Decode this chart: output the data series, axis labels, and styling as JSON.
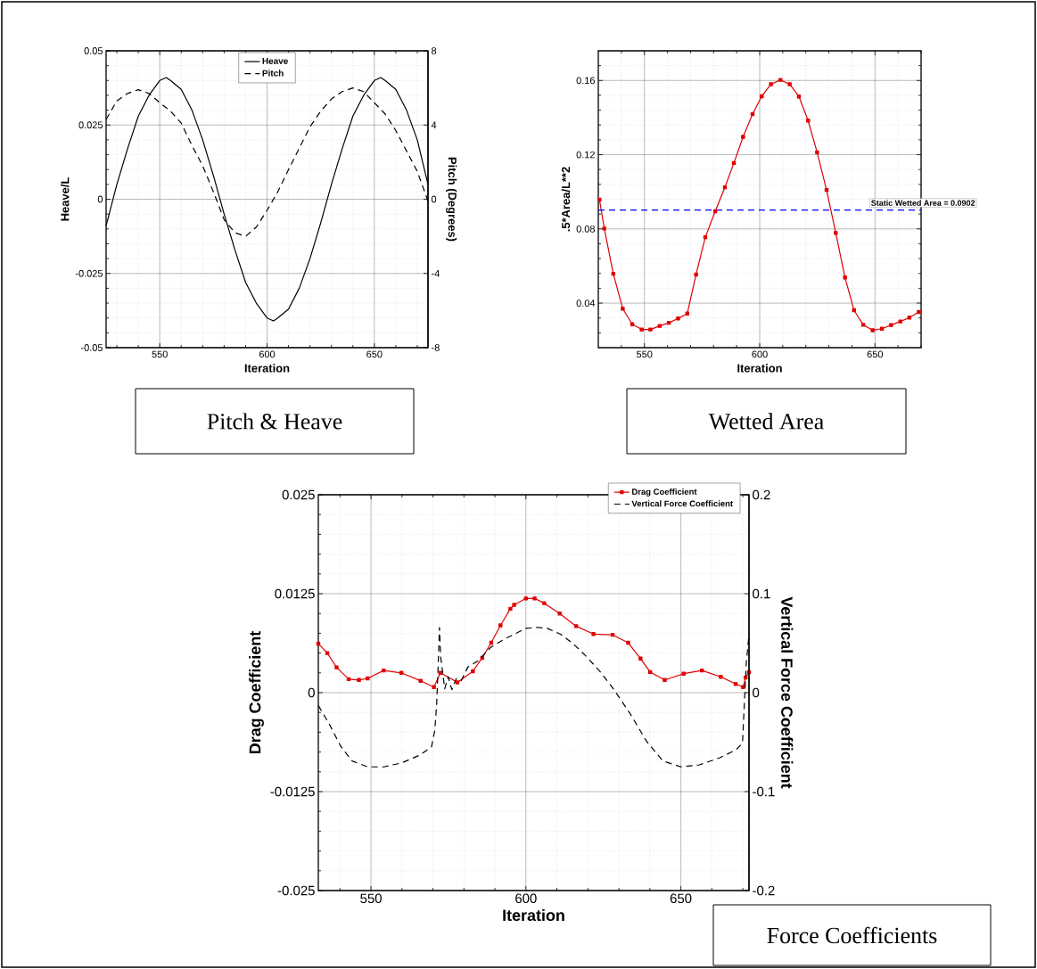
{
  "chart_data": [
    {
      "type": "line",
      "xlabel": "Iteration",
      "ylabel": "Heave/L",
      "y2label": "Pitch (Degrees)",
      "annotations": [
        "Pitch & Heave"
      ],
      "xlim": [
        525,
        675
      ],
      "ylim": [
        -0.05,
        0.05
      ],
      "y2lim": [
        -8,
        8
      ],
      "xticks": [
        {
          "value": 530,
          "label": null
        },
        {
          "value": 540,
          "label": null
        },
        550,
        {
          "value": 560,
          "label": null
        },
        {
          "value": 570,
          "label": null
        },
        {
          "value": 580,
          "label": null
        },
        {
          "value": 590,
          "label": null
        },
        600,
        {
          "value": 610,
          "label": null
        },
        {
          "value": 620,
          "label": null
        },
        {
          "value": 630,
          "label": null
        },
        {
          "value": 640,
          "label": null
        },
        650,
        {
          "value": 660,
          "label": null
        },
        {
          "value": 670,
          "label": null
        }
      ],
      "yticks": [
        -0.05,
        {
          "value": -0.045,
          "label": null
        },
        {
          "value": -0.04,
          "label": null
        },
        {
          "value": -0.035,
          "label": null
        },
        {
          "value": -0.03,
          "label": null
        },
        -0.025,
        {
          "value": -0.02,
          "label": null
        },
        {
          "value": -0.015,
          "label": null
        },
        {
          "value": -0.01,
          "label": null
        },
        {
          "value": -0.005,
          "label": null
        },
        0,
        {
          "value": 0.005,
          "label": null
        },
        {
          "value": 0.01,
          "label": null
        },
        {
          "value": 0.015,
          "label": null
        },
        {
          "value": 0.02,
          "label": null
        },
        0.025,
        {
          "value": 0.03,
          "label": null
        },
        {
          "value": 0.035,
          "label": null
        },
        {
          "value": 0.04,
          "label": null
        },
        {
          "value": 0.045,
          "label": null
        },
        0.05
      ],
      "y2ticks": [
        -8,
        -4,
        0,
        4,
        8
      ],
      "grid": true,
      "legend": "top",
      "series": [
        {
          "name": "Heave",
          "color": "#000000",
          "line_style": "solid",
          "x": [
            525,
            530,
            535,
            540,
            545,
            550,
            553,
            555,
            560,
            565,
            570,
            575,
            580,
            585,
            590,
            595,
            600,
            603,
            605,
            610,
            615,
            620,
            625,
            630,
            635,
            640,
            645,
            650,
            653,
            655,
            660,
            665,
            670,
            675
          ],
          "values": [
            -0.009,
            0.005,
            0.017,
            0.028,
            0.035,
            0.04,
            0.041,
            0.04,
            0.037,
            0.03,
            0.02,
            0.008,
            -0.005,
            -0.017,
            -0.028,
            -0.035,
            -0.04,
            -0.041,
            -0.04,
            -0.037,
            -0.03,
            -0.02,
            -0.008,
            0.005,
            0.017,
            0.028,
            0.035,
            0.04,
            0.041,
            0.04,
            0.037,
            0.03,
            0.02,
            0.005
          ]
        },
        {
          "name": "Pitch",
          "color": "#000000",
          "line_style": "dashed",
          "axis": "y2",
          "x": [
            525,
            530,
            535,
            540,
            545,
            550,
            555,
            560,
            565,
            570,
            575,
            580,
            585,
            590,
            595,
            600,
            605,
            610,
            615,
            620,
            625,
            630,
            635,
            640,
            645,
            650,
            655,
            660,
            665,
            670,
            675
          ],
          "values": [
            4.3,
            5.3,
            5.7,
            5.9,
            5.7,
            5.2,
            4.75,
            4.1,
            2.9,
            1.8,
            0.4,
            -1.1,
            -1.8,
            -2.0,
            -1.5,
            -0.6,
            0.4,
            1.6,
            2.75,
            3.9,
            4.75,
            5.4,
            5.8,
            6.0,
            5.8,
            5.2,
            4.6,
            3.7,
            2.6,
            1.5,
            -0.1
          ]
        }
      ]
    },
    {
      "type": "line",
      "xlabel": "Iteration",
      "ylabel": ".5*Area/L**2",
      "annotations": [
        "Wetted Area"
      ],
      "xlim": [
        530,
        670
      ],
      "ylim": [
        0.016,
        0.176
      ],
      "xticks": [
        {
          "value": 540,
          "label": null
        },
        550,
        {
          "value": 560,
          "label": null
        },
        {
          "value": 570,
          "label": null
        },
        {
          "value": 580,
          "label": null
        },
        {
          "value": 590,
          "label": null
        },
        600,
        {
          "value": 610,
          "label": null
        },
        {
          "value": 620,
          "label": null
        },
        {
          "value": 630,
          "label": null
        },
        {
          "value": 640,
          "label": null
        },
        650,
        {
          "value": 660,
          "label": null
        },
        {
          "value": 670,
          "label": null
        }
      ],
      "yticks": [
        {
          "value": 0.024,
          "label": null
        },
        {
          "value": 0.032,
          "label": null
        },
        0.04,
        {
          "value": 0.048,
          "label": null
        },
        {
          "value": 0.056,
          "label": null
        },
        {
          "value": 0.064,
          "label": null
        },
        {
          "value": 0.072,
          "label": null
        },
        0.08,
        {
          "value": 0.088,
          "label": null
        },
        {
          "value": 0.096,
          "label": null
        },
        {
          "value": 0.104,
          "label": null
        },
        {
          "value": 0.112,
          "label": null
        },
        0.12,
        {
          "value": 0.128,
          "label": null
        },
        {
          "value": 0.136,
          "label": null
        },
        {
          "value": 0.144,
          "label": null
        },
        {
          "value": 0.152,
          "label": null
        },
        0.16,
        {
          "value": 0.168,
          "label": null
        }
      ],
      "grid": true,
      "ref_lines": [
        {
          "axis": "y",
          "value": 0.0902,
          "label": "Static Wetted Area = 0.0902",
          "color": "#0000ff",
          "line_style": "dashed"
        }
      ],
      "series": [
        {
          "color": "#e00000",
          "marker": "square",
          "line_style": "solid",
          "x": [
            530.5,
            532.6,
            536.5,
            540.6,
            544.7,
            548.8,
            552.6,
            556.6,
            560.6,
            564.6,
            568.6,
            572.4,
            576.4,
            580.7,
            584.9,
            588.8,
            592.8,
            596.9,
            600.9,
            604.9,
            609.0,
            613.0,
            617.0,
            621.0,
            624.9,
            629.0,
            633.0,
            637.0,
            640.9,
            644.9,
            649.0,
            653.0,
            657.0,
            661.0,
            664.9,
            669.0
          ],
          "values": [
            0.0958,
            0.0802,
            0.0558,
            0.037,
            0.0286,
            0.0258,
            0.0258,
            0.0277,
            0.0294,
            0.0317,
            0.0344,
            0.0554,
            0.0755,
            0.0895,
            0.1024,
            0.1155,
            0.1296,
            0.1419,
            0.1515,
            0.158,
            0.1603,
            0.158,
            0.1514,
            0.1384,
            0.1213,
            0.101,
            0.0778,
            0.0538,
            0.0362,
            0.0283,
            0.0254,
            0.0262,
            0.0282,
            0.0301,
            0.0322,
            0.0352
          ]
        }
      ]
    },
    {
      "type": "line",
      "xlabel": "Iteration",
      "ylabel": "Drag Coefficient",
      "y2label": "Vertical Force Coefficient",
      "annotations": [
        "Force Coefficients"
      ],
      "xlim": [
        533,
        672
      ],
      "ylim": [
        -0.025,
        0.025
      ],
      "y2lim": [
        -0.2,
        0.2
      ],
      "xticks": [
        {
          "value": 540,
          "label": null
        },
        550,
        {
          "value": 560,
          "label": null
        },
        {
          "value": 570,
          "label": null
        },
        {
          "value": 580,
          "label": null
        },
        {
          "value": 590,
          "label": null
        },
        600,
        {
          "value": 610,
          "label": null
        },
        {
          "value": 620,
          "label": null
        },
        {
          "value": 630,
          "label": null
        },
        {
          "value": 640,
          "label": null
        },
        650,
        {
          "value": 660,
          "label": null
        },
        {
          "value": 670,
          "label": null
        }
      ],
      "yticks": [
        -0.025,
        {
          "value": -0.0225,
          "label": null
        },
        {
          "value": -0.02,
          "label": null
        },
        {
          "value": -0.0175,
          "label": null
        },
        {
          "value": -0.015,
          "label": null
        },
        -0.0125,
        {
          "value": -0.01,
          "label": null
        },
        {
          "value": -0.0075,
          "label": null
        },
        {
          "value": -0.005,
          "label": null
        },
        {
          "value": -0.0025,
          "label": null
        },
        0,
        {
          "value": 0.0025,
          "label": null
        },
        {
          "value": 0.005,
          "label": null
        },
        {
          "value": 0.0075,
          "label": null
        },
        {
          "value": 0.01,
          "label": null
        },
        0.0125,
        {
          "value": 0.015,
          "label": null
        },
        {
          "value": 0.0175,
          "label": null
        },
        {
          "value": 0.02,
          "label": null
        },
        {
          "value": 0.0225,
          "label": null
        },
        0.025
      ],
      "y2ticks": [
        -0.2,
        -0.1,
        0,
        0.1,
        0.2
      ],
      "grid": true,
      "legend": "top right",
      "series": [
        {
          "name": "Drag Coefficient",
          "color": "#e00000",
          "marker": "square",
          "line_style": "solid",
          "x": [
            533.0,
            535.9,
            538.9,
            542.8,
            546.1,
            548.9,
            554.1,
            559.8,
            566.0,
            570.3,
            572.4,
            577.9,
            582.9,
            585.9,
            588.8,
            591.8,
            595.0,
            596.2,
            600.0,
            602.8,
            605.9,
            610.9,
            616.2,
            621.8,
            628.0,
            633.0,
            637.0,
            640.1,
            644.8,
            650.9,
            656.8,
            662.9,
            667.7,
            670.1,
            670.9,
            672.0
          ],
          "values": [
            0.0062,
            0.005,
            0.0032,
            0.0017,
            0.0016,
            0.0018,
            0.0028,
            0.0025,
            0.0015,
            0.0007,
            0.0025,
            0.0013,
            0.0027,
            0.0044,
            0.0063,
            0.0085,
            0.0106,
            0.0111,
            0.0119,
            0.0119,
            0.0113,
            0.01,
            0.0084,
            0.0074,
            0.0073,
            0.0063,
            0.0043,
            0.0026,
            0.0016,
            0.0024,
            0.0028,
            0.002,
            0.0011,
            0.0007,
            0.0019,
            0.0026
          ]
        },
        {
          "name": "Vertical Force Coefficient",
          "color": "#000000",
          "line_style": "dashed",
          "axis": "y2",
          "x": [
            533.0,
            536.4,
            540.2,
            543.9,
            548.9,
            554.1,
            559.9,
            565.8,
            569.5,
            570.6,
            571.2,
            571.7,
            572.1,
            572.5,
            573.8,
            574.9,
            576.1,
            577.5,
            579.1,
            581.3,
            584.5,
            588.7,
            593.0,
            596.2,
            600.0,
            603.6,
            606.9,
            611.2,
            615.4,
            619.7,
            624.0,
            628.2,
            633.6,
            638.9,
            644.2,
            650.0,
            656.0,
            662.4,
            667.7,
            669.9,
            670.5,
            671.1,
            672.0
          ],
          "values": [
            -0.013,
            -0.031,
            -0.054,
            -0.069,
            -0.075,
            -0.075,
            -0.071,
            -0.063,
            -0.055,
            -0.038,
            -0.011,
            0.029,
            0.066,
            0.036,
            0.004,
            0.016,
            0.003,
            0.014,
            0.012,
            0.026,
            0.032,
            0.046,
            0.054,
            0.059,
            0.065,
            0.066,
            0.065,
            0.059,
            0.049,
            0.036,
            0.021,
            0.004,
            -0.021,
            -0.049,
            -0.069,
            -0.075,
            -0.073,
            -0.066,
            -0.058,
            -0.051,
            -0.011,
            0.029,
            0.059
          ]
        }
      ]
    }
  ]
}
